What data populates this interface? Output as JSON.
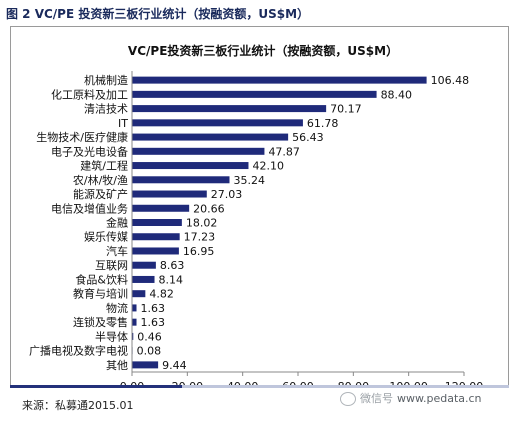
{
  "figure_caption": "图 2 VC/PE 投资新三板行业统计（按融资额，US$M）",
  "source": "来源：私募通2015.01",
  "watermark": {
    "text": "微信号",
    "url": "www.pedata.cn",
    "icon": "wechat-icon"
  },
  "colors": {
    "bar": "#1f2a7a",
    "axis": "#888888",
    "accent_rule": "#23317a",
    "rule": "#bfc6dc",
    "caption": "#1a2a5c"
  },
  "chart_data": {
    "type": "bar",
    "orientation": "horizontal",
    "title": "VC/PE投资新三板行业统计（按融资额，US$M）",
    "categories": [
      "机械制造",
      "化工原料及加工",
      "清洁技术",
      "IT",
      "生物技术/医疗健康",
      "电子及光电设备",
      "建筑/工程",
      "农/林/牧/渔",
      "能源及矿产",
      "电信及增值业务",
      "金融",
      "娱乐传媒",
      "汽车",
      "互联网",
      "食品&饮料",
      "教育与培训",
      "物流",
      "连锁及零售",
      "半导体",
      "广播电视及数字电视",
      "其他"
    ],
    "values": [
      106.48,
      88.4,
      70.17,
      61.78,
      56.43,
      47.87,
      42.1,
      35.24,
      27.03,
      20.66,
      18.02,
      17.23,
      16.95,
      8.63,
      8.14,
      4.82,
      1.63,
      1.63,
      0.46,
      0.08,
      9.44
    ],
    "value_labels": [
      "106.48",
      "88.40",
      "70.17",
      "61.78",
      "56.43",
      "47.87",
      "42.10",
      "35.24",
      "27.03",
      "20.66",
      "18.02",
      "17.23",
      "16.95",
      "8.63",
      "8.14",
      "4.82",
      "1.63",
      "1.63",
      "0.46",
      "0.08",
      "9.44"
    ],
    "xlim": [
      0,
      120
    ],
    "xticks": [
      "0.00",
      "20.00",
      "40.00",
      "60.00",
      "80.00",
      "100.00",
      "120.00"
    ],
    "xticks_values": [
      0,
      20,
      40,
      60,
      80,
      100,
      120
    ],
    "grid": false,
    "legend": "none"
  }
}
